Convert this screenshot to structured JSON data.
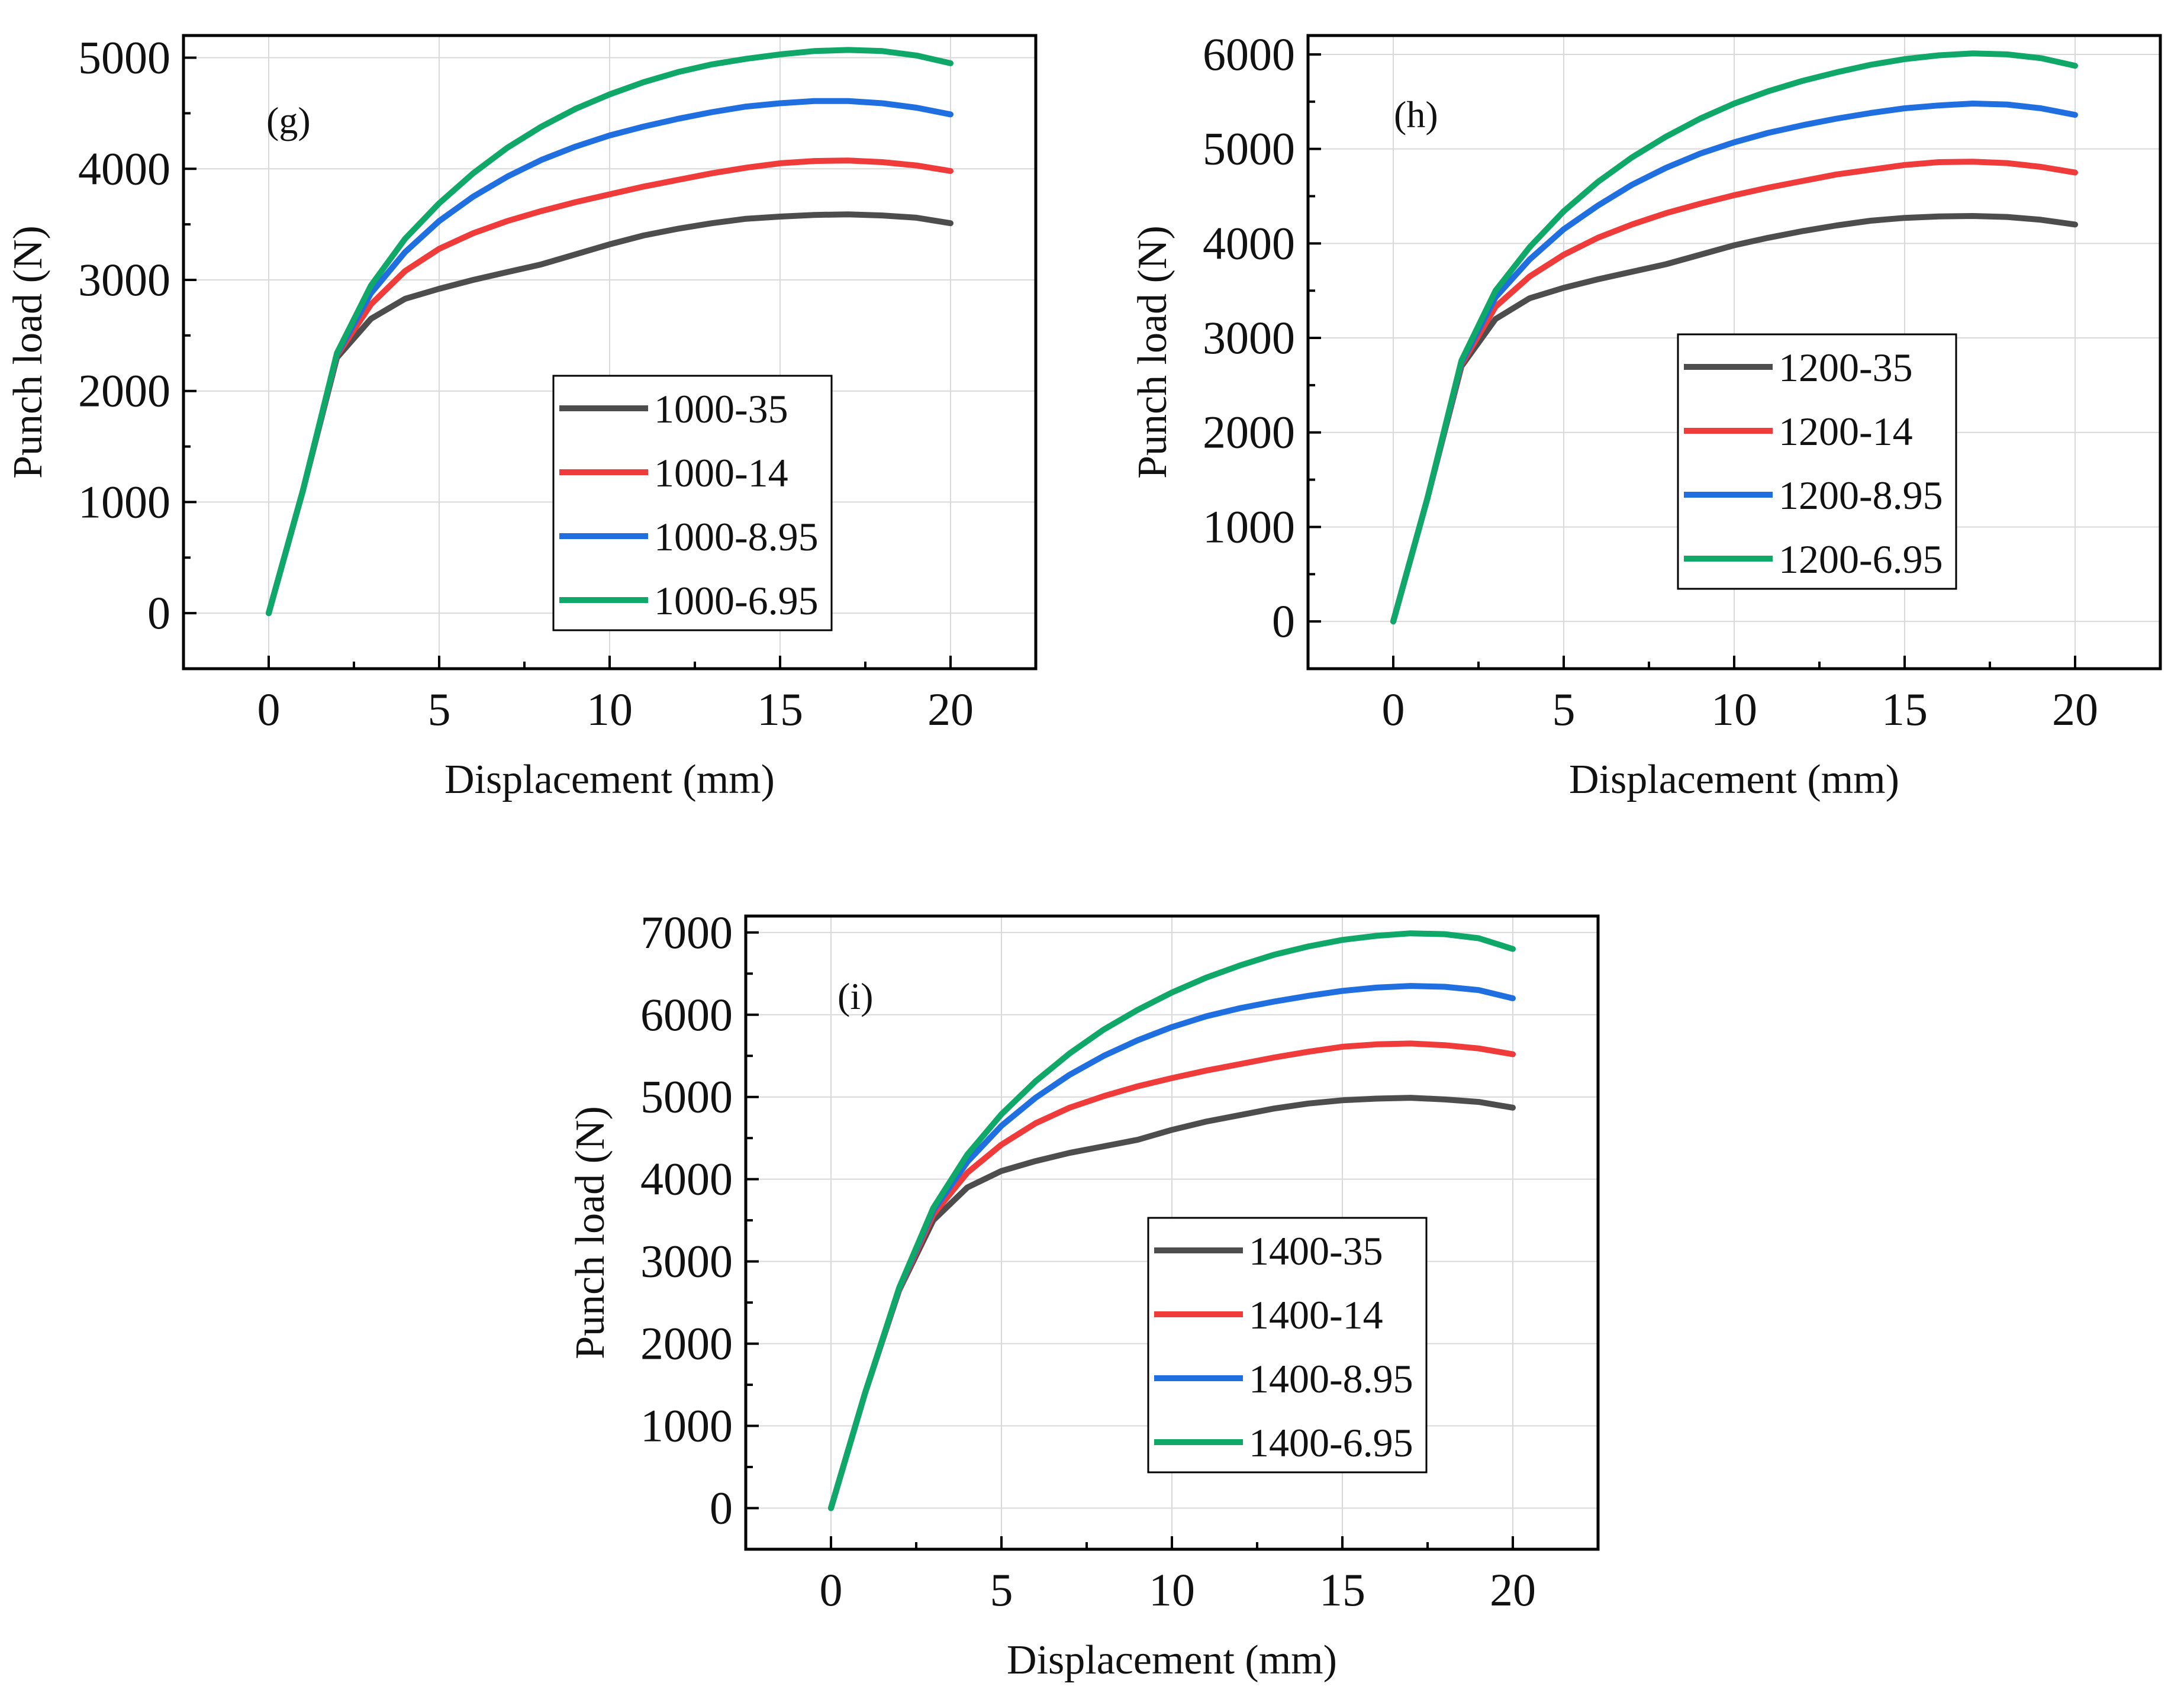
{
  "chart_data": [
    {
      "type": "line",
      "panel_label": "(g)",
      "xlabel": "Displacement (mm)",
      "ylabel": "Punch load (N)",
      "xlim": [
        -2.5,
        22.5
      ],
      "ylim": [
        -500,
        5200
      ],
      "xticks": [
        "0",
        "5",
        "10",
        "15",
        "20"
      ],
      "xtick_values": [
        0,
        5,
        10,
        15,
        20
      ],
      "yticks": [
        "0",
        "1000",
        "2000",
        "3000",
        "4000",
        "5000"
      ],
      "ytick_values": [
        0,
        1000,
        2000,
        3000,
        4000,
        5000
      ],
      "grid": true,
      "legend_position": "center-right",
      "x": [
        0,
        1,
        2,
        3,
        4,
        5,
        6,
        7,
        8,
        9,
        10,
        11,
        12,
        13,
        14,
        15,
        16,
        17,
        18,
        19,
        20
      ],
      "series": [
        {
          "name": "1000-35",
          "color": "#4d4d4d",
          "values": [
            0,
            1100,
            2300,
            2650,
            2830,
            2920,
            3000,
            3070,
            3140,
            3230,
            3320,
            3400,
            3460,
            3510,
            3550,
            3570,
            3585,
            3590,
            3580,
            3560,
            3510
          ]
        },
        {
          "name": "1000-14",
          "color": "#f03b3b",
          "values": [
            0,
            1100,
            2320,
            2780,
            3080,
            3280,
            3420,
            3530,
            3620,
            3700,
            3770,
            3840,
            3900,
            3960,
            4010,
            4050,
            4070,
            4075,
            4060,
            4030,
            3980
          ]
        },
        {
          "name": "1000-8.95",
          "color": "#1f6fe0",
          "values": [
            0,
            1100,
            2330,
            2880,
            3250,
            3530,
            3750,
            3930,
            4080,
            4200,
            4300,
            4380,
            4450,
            4510,
            4560,
            4590,
            4610,
            4610,
            4590,
            4550,
            4490
          ]
        },
        {
          "name": "1000-6.95",
          "color": "#0fa868",
          "values": [
            0,
            1100,
            2340,
            2950,
            3370,
            3690,
            3960,
            4190,
            4380,
            4540,
            4670,
            4780,
            4870,
            4940,
            4990,
            5030,
            5060,
            5070,
            5060,
            5020,
            4950
          ]
        }
      ]
    },
    {
      "type": "line",
      "panel_label": "(h)",
      "xlabel": "Displacement (mm)",
      "ylabel": "Punch load (N)",
      "xlim": [
        -2.5,
        22.5
      ],
      "ylim": [
        -500,
        6200
      ],
      "xticks": [
        "0",
        "5",
        "10",
        "15",
        "20"
      ],
      "xtick_values": [
        0,
        5,
        10,
        15,
        20
      ],
      "yticks": [
        "0",
        "1000",
        "2000",
        "3000",
        "4000",
        "5000",
        "6000"
      ],
      "ytick_values": [
        0,
        1000,
        2000,
        3000,
        4000,
        5000,
        6000
      ],
      "grid": true,
      "legend_position": "center-right",
      "x": [
        0,
        1,
        2,
        3,
        4,
        5,
        6,
        7,
        8,
        9,
        10,
        11,
        12,
        13,
        14,
        15,
        16,
        17,
        18,
        19,
        20
      ],
      "series": [
        {
          "name": "1200-35",
          "color": "#4d4d4d",
          "values": [
            0,
            1300,
            2700,
            3200,
            3420,
            3530,
            3620,
            3700,
            3780,
            3880,
            3980,
            4060,
            4130,
            4190,
            4240,
            4270,
            4285,
            4290,
            4280,
            4250,
            4200
          ]
        },
        {
          "name": "1200-14",
          "color": "#f03b3b",
          "values": [
            0,
            1300,
            2720,
            3330,
            3650,
            3880,
            4060,
            4200,
            4320,
            4420,
            4510,
            4590,
            4660,
            4730,
            4780,
            4830,
            4860,
            4865,
            4850,
            4810,
            4750
          ]
        },
        {
          "name": "1200-8.95",
          "color": "#1f6fe0",
          "values": [
            0,
            1300,
            2740,
            3430,
            3830,
            4150,
            4400,
            4620,
            4800,
            4950,
            5070,
            5170,
            5250,
            5320,
            5380,
            5430,
            5460,
            5480,
            5470,
            5430,
            5360
          ]
        },
        {
          "name": "1200-6.95",
          "color": "#0fa868",
          "values": [
            0,
            1300,
            2760,
            3500,
            3960,
            4340,
            4650,
            4910,
            5130,
            5320,
            5480,
            5610,
            5720,
            5810,
            5890,
            5950,
            5990,
            6010,
            6000,
            5960,
            5880
          ]
        }
      ]
    },
    {
      "type": "line",
      "panel_label": "(i)",
      "xlabel": "Displacement (mm)",
      "ylabel": "Punch load (N)",
      "xlim": [
        -2.5,
        22.5
      ],
      "ylim": [
        -500,
        7200
      ],
      "xticks": [
        "0",
        "5",
        "10",
        "15",
        "20"
      ],
      "xtick_values": [
        0,
        5,
        10,
        15,
        20
      ],
      "yticks": [
        "0",
        "1000",
        "2000",
        "3000",
        "4000",
        "5000",
        "6000",
        "7000"
      ],
      "ytick_values": [
        0,
        1000,
        2000,
        3000,
        4000,
        5000,
        6000,
        7000
      ],
      "grid": true,
      "legend_position": "bottom-center",
      "x": [
        0,
        1,
        2,
        3,
        4,
        5,
        6,
        7,
        8,
        9,
        10,
        11,
        12,
        13,
        14,
        15,
        16,
        17,
        18,
        19,
        20
      ],
      "series": [
        {
          "name": "1400-35",
          "color": "#4d4d4d",
          "values": [
            0,
            1400,
            2650,
            3500,
            3900,
            4100,
            4220,
            4320,
            4400,
            4480,
            4600,
            4700,
            4780,
            4860,
            4920,
            4960,
            4980,
            4990,
            4970,
            4940,
            4870
          ]
        },
        {
          "name": "1400-14",
          "color": "#f03b3b",
          "values": [
            0,
            1400,
            2660,
            3570,
            4080,
            4420,
            4680,
            4870,
            5010,
            5130,
            5230,
            5320,
            5400,
            5480,
            5550,
            5610,
            5640,
            5650,
            5630,
            5590,
            5520
          ]
        },
        {
          "name": "1400-8.95",
          "color": "#1f6fe0",
          "values": [
            0,
            1400,
            2670,
            3620,
            4210,
            4650,
            4990,
            5270,
            5500,
            5690,
            5850,
            5980,
            6080,
            6160,
            6230,
            6290,
            6330,
            6350,
            6340,
            6300,
            6200
          ]
        },
        {
          "name": "1400-6.95",
          "color": "#0fa868",
          "values": [
            0,
            1400,
            2680,
            3650,
            4300,
            4790,
            5190,
            5530,
            5820,
            6060,
            6270,
            6450,
            6600,
            6730,
            6830,
            6910,
            6960,
            6990,
            6980,
            6930,
            6800
          ]
        }
      ]
    }
  ]
}
